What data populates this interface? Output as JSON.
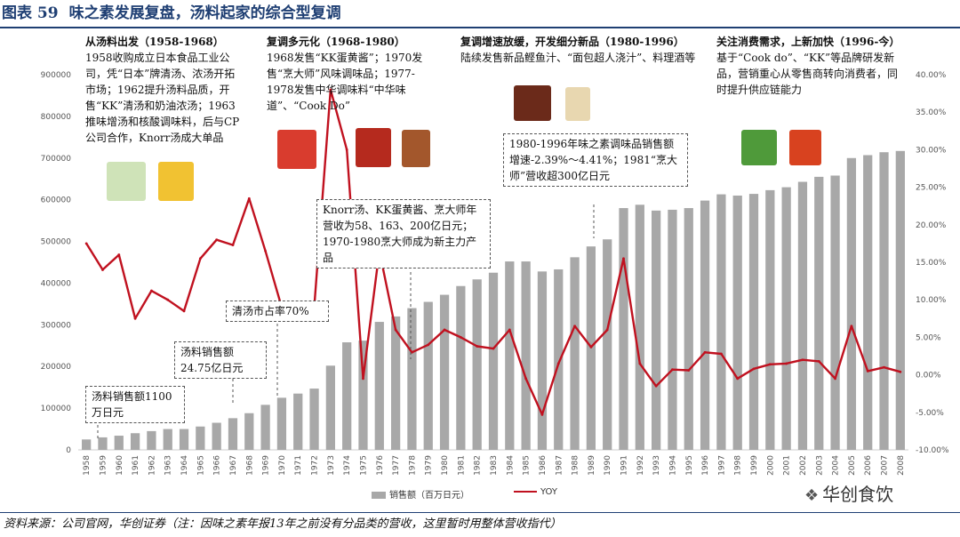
{
  "figure": {
    "number": "图表 59",
    "title": "味之素发展复盘，汤料起家的综合型复调"
  },
  "eras": [
    {
      "title": "从汤料出发（1958-1968）",
      "body": "1958收购成立日本食品工业公司，凭“日本”牌清汤、浓汤开拓市场；1962提升汤料品质，开售“KK”清汤和奶油浓汤；1963推味增汤和核酸调味料，后与CP公司合作，Knorr汤成大单品"
    },
    {
      "title": "复调多元化（1968-1980）",
      "body": "1968发售“KK蛋黄酱”；1970发售“烹大师”风味调味品；1977-1978发售中华调味料“中华味道”、“Cook Do”"
    },
    {
      "title": "复调增速放缓，开发细分新品（1980-1996）",
      "body": "陆续发售新品鲣鱼汁、“面包超人浇汁”、料理酒等"
    },
    {
      "title": "关注消费需求，上新加快（1996-今）",
      "body": "基于“Cook do”、“KK”等品牌研发新品，营销重心从零售商转向消费者，同时提升供应链能力"
    }
  ],
  "callouts": [
    {
      "text": "汤料销售额1100万日元"
    },
    {
      "text": "汤料销售额24.75亿日元"
    },
    {
      "text": "清汤市占率70%"
    },
    {
      "text": "Knorr汤、KK蛋黄酱、烹大师年营收为58、163、200亿日元；1970-1980烹大师成为新主力产品"
    },
    {
      "text": "1980-1996年味之素调味品销售额增速-2.39%～4.41%；1981“烹大师”营收超300亿日元"
    }
  ],
  "legend": {
    "bar_label": "销售额（百万日元）",
    "line_label": "YOY"
  },
  "source": "资料来源：公司官网，华创证券（注：因味之素年报13年之前没有分品类的营收，这里暂时用整体营收指代）",
  "watermark": "华创食饮",
  "colors": {
    "bar": "#a8a8a8",
    "line": "#c0111f",
    "title": "#1f3f73",
    "axis_text": "#555555"
  },
  "chart_data": {
    "type": "bar",
    "categories": [
      "1958",
      "1959",
      "1960",
      "1961",
      "1962",
      "1963",
      "1964",
      "1965",
      "1966",
      "1967",
      "1968",
      "1969",
      "1970",
      "1971",
      "1972",
      "1973",
      "1974",
      "1975",
      "1976",
      "1977",
      "1978",
      "1979",
      "1980",
      "1981",
      "1982",
      "1983",
      "1984",
      "1985",
      "1986",
      "1987",
      "1988",
      "1989",
      "1990",
      "1991",
      "1992",
      "1993",
      "1994",
      "1995",
      "1996",
      "1997",
      "1998",
      "1999",
      "2000",
      "2001",
      "2002",
      "2003",
      "2004",
      "2005",
      "2006",
      "2007",
      "2008"
    ],
    "series": [
      {
        "name": "销售额（百万日元）",
        "type": "bar",
        "axis": "left",
        "values": [
          25000,
          30000,
          34000,
          40000,
          45000,
          50000,
          50000,
          56000,
          65000,
          76000,
          88000,
          108000,
          125000,
          135000,
          147000,
          202000,
          258000,
          262000,
          307000,
          320000,
          340000,
          355000,
          372000,
          393000,
          409000,
          425000,
          452000,
          452000,
          428000,
          433000,
          462000,
          488000,
          505000,
          580000,
          588000,
          574000,
          576000,
          580000,
          598000,
          613000,
          610000,
          614000,
          623000,
          630000,
          643000,
          655000,
          658000,
          700000,
          707000,
          714000,
          717000
        ]
      },
      {
        "name": "YOY",
        "type": "line",
        "axis": "right",
        "values": [
          17.5,
          14.0,
          16.0,
          7.5,
          11.2,
          10.0,
          8.5,
          15.5,
          18.0,
          17.3,
          23.5,
          16.5,
          9.0,
          9.0,
          9.0,
          38.0,
          30.0,
          -0.5,
          16.5,
          6.0,
          3.0,
          4.0,
          6.0,
          5.0,
          3.8,
          3.5,
          6.0,
          -0.5,
          -5.3,
          1.5,
          6.5,
          3.7,
          6.0,
          15.5,
          1.5,
          -1.5,
          0.7,
          0.6,
          3.0,
          2.8,
          -0.5,
          0.8,
          1.4,
          1.5,
          2.0,
          1.8,
          -0.5,
          6.5,
          0.5,
          1.0,
          0.4
        ]
      }
    ],
    "y_left": {
      "min": 0,
      "max": 900000,
      "ticks": [
        "0",
        "100000",
        "200000",
        "300000",
        "400000",
        "500000",
        "600000",
        "700000",
        "800000",
        "900000"
      ]
    },
    "y_right": {
      "min": -10,
      "max": 40,
      "ticks": [
        "-10.00%",
        "-5.00%",
        "0.00%",
        "5.00%",
        "10.00%",
        "15.00%",
        "20.00%",
        "25.00%",
        "30.00%",
        "35.00%",
        "40.00%"
      ]
    },
    "grid": false,
    "legend_position": "bottom"
  }
}
